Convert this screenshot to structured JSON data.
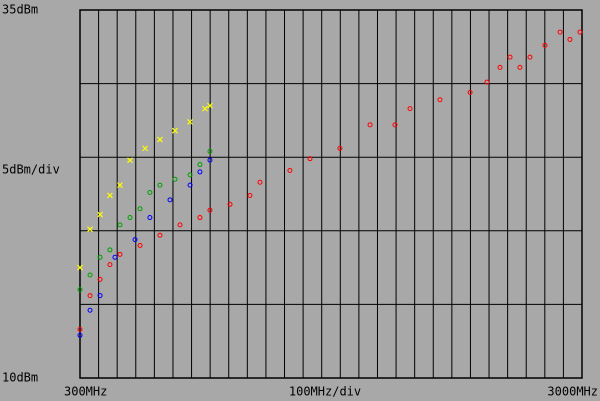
{
  "chart_data": {
    "type": "scatter",
    "xlim": [
      300,
      3000
    ],
    "ylim": [
      10,
      35
    ],
    "xticks": [
      {
        "value": 300,
        "label": "300MHz"
      },
      {
        "value": 3000,
        "label": "3000MHz"
      }
    ],
    "yticks": [
      {
        "value": 35,
        "label": "35dBm"
      },
      {
        "value": 10,
        "label": "10dBm"
      }
    ],
    "xdiv": {
      "value": 100,
      "label": "100MHz/div"
    },
    "ydiv": {
      "value": 5,
      "label": "5dBm/div"
    },
    "grid": true,
    "series": [
      {
        "color": "#ff0000",
        "marker": "circle",
        "x": [
          300,
          354,
          408,
          461,
          515,
          623,
          730,
          838,
          945,
          999,
          1107,
          1214,
          1268,
          1429,
          1537,
          1698,
          1860,
          1994,
          2075,
          2236,
          2398,
          2489,
          2559,
          2613,
          2666,
          2720,
          2801,
          2882,
          2935,
          2989
        ],
        "values": [
          13.3,
          15.6,
          16.7,
          17.7,
          18.4,
          19.0,
          19.7,
          20.4,
          20.9,
          21.4,
          21.8,
          22.4,
          23.3,
          24.1,
          24.9,
          25.6,
          27.2,
          27.2,
          28.3,
          28.9,
          29.4,
          30.1,
          31.1,
          31.8,
          31.1,
          31.8,
          32.6,
          33.5,
          33.0,
          33.5
        ]
      },
      {
        "color": "#ffff00",
        "marker": "cross",
        "x": [
          300,
          354,
          408,
          461,
          515,
          569,
          650,
          730,
          811,
          892,
          972,
          999
        ],
        "values": [
          17.5,
          20.1,
          21.1,
          22.4,
          23.1,
          24.8,
          25.6,
          26.2,
          26.8,
          27.4,
          28.3,
          28.5
        ]
      },
      {
        "color": "#00a000",
        "marker": "circle",
        "x": [
          300,
          354,
          408,
          461,
          515,
          569,
          623,
          676,
          730,
          811,
          892,
          945,
          999
        ],
        "values": [
          16.0,
          17.0,
          18.2,
          18.7,
          20.4,
          20.9,
          21.5,
          22.6,
          23.1,
          23.5,
          23.8,
          24.5,
          25.4
        ]
      },
      {
        "color": "#0000ff",
        "marker": "circle",
        "x": [
          300,
          354,
          408,
          488,
          596,
          676,
          784,
          892,
          945,
          999
        ],
        "values": [
          12.9,
          14.6,
          15.6,
          18.2,
          19.4,
          20.9,
          22.1,
          23.1,
          24.0,
          24.8
        ]
      }
    ]
  }
}
